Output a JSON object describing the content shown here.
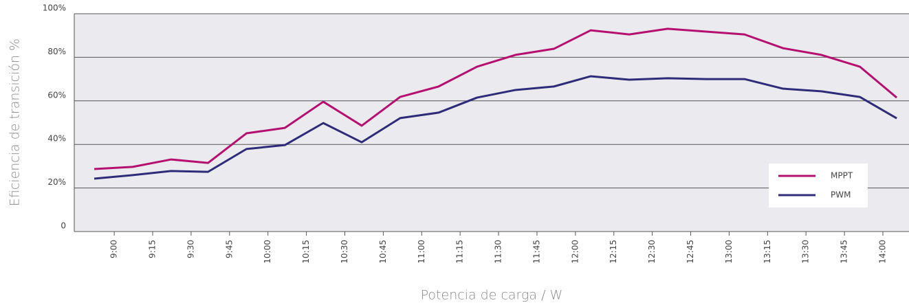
{
  "chart_data": {
    "type": "line",
    "x_label": "Potencia de carga / W",
    "y_label": "Eficiencia de transición %",
    "x": [
      8.87,
      9.12,
      9.37,
      9.61,
      9.86,
      10.11,
      10.36,
      10.61,
      10.86,
      11.11,
      11.36,
      11.61,
      11.86,
      12.1,
      12.35,
      12.6,
      12.85,
      13.1,
      13.35,
      13.6,
      13.85,
      14.09
    ],
    "series": [
      {
        "name": "MPPT",
        "color": "#b5106f",
        "values": [
          28.7,
          29.7,
          33.1,
          31.5,
          45.1,
          47.6,
          59.6,
          48.6,
          61.8,
          66.6,
          75.7,
          81.1,
          83.9,
          92.4,
          90.5,
          93.1,
          91.8,
          90.5,
          84.2,
          81.1,
          75.7,
          61.5
        ]
      },
      {
        "name": "PWM",
        "color": "#2e2b78",
        "values": [
          24.3,
          25.9,
          27.8,
          27.4,
          37.9,
          39.7,
          49.8,
          41.0,
          52.1,
          54.6,
          61.5,
          65.0,
          66.6,
          71.3,
          69.7,
          70.4,
          70.0,
          70.0,
          65.6,
          64.4,
          61.8,
          52.0
        ]
      }
    ],
    "xlim": [
      8.74,
      14.17
    ],
    "xticks": [
      {
        "value": 9,
        "label": "9:00"
      },
      {
        "value": 9.25,
        "label": "9:15"
      },
      {
        "value": 9.5,
        "label": "9:30"
      },
      {
        "value": 9.75,
        "label": "9:45"
      },
      {
        "value": 10,
        "label": "10:00"
      },
      {
        "value": 10.25,
        "label": "10:15"
      },
      {
        "value": 10.5,
        "label": "10:30"
      },
      {
        "value": 10.75,
        "label": "10:45"
      },
      {
        "value": 11,
        "label": "11:00"
      },
      {
        "value": 11.25,
        "label": "11:15"
      },
      {
        "value": 11.5,
        "label": "11:30"
      },
      {
        "value": 11.75,
        "label": "11:45"
      },
      {
        "value": 12,
        "label": "12:00"
      },
      {
        "value": 12.25,
        "label": "12:15"
      },
      {
        "value": 12.5,
        "label": "12:30"
      },
      {
        "value": 12.75,
        "label": "12:45"
      },
      {
        "value": 13,
        "label": "13:00"
      },
      {
        "value": 13.25,
        "label": "13:15"
      },
      {
        "value": 13.5,
        "label": "13:30"
      },
      {
        "value": 13.75,
        "label": "13:45"
      },
      {
        "value": 14,
        "label": "14:00"
      }
    ],
    "ylim": [
      0,
      100
    ],
    "yticks": [
      0,
      {
        "value": 20,
        "label": "20%"
      },
      {
        "value": 40,
        "label": "40%"
      },
      {
        "value": 60,
        "label": "60%"
      },
      {
        "value": 80,
        "label": "80%"
      },
      {
        "value": 100,
        "label": "100%"
      }
    ],
    "grid": true,
    "legend": "lower right"
  }
}
